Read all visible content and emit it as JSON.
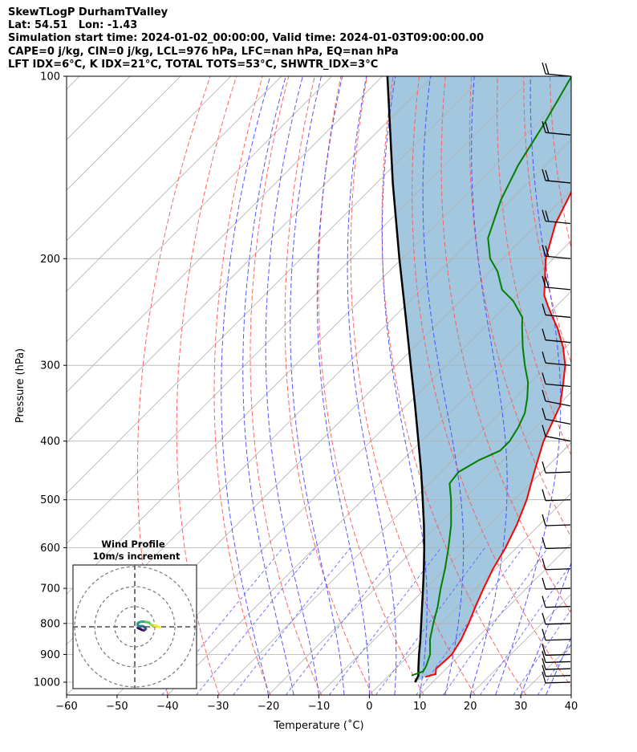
{
  "header": {
    "line1": "SkewTLogP DurhamTValley",
    "line2": "Lat: 54.51   Lon: -1.43",
    "line3": "Simulation start time: 2024-01-02_00:00:00, Valid time: 2024-01-03T09:00:00.00",
    "line4": "CAPE=0 j/kg, CIN=0 j/kg, LCL=976 hPa, LFC=nan hPa, EQ=nan hPa",
    "line5": "LFT IDX=6°C, K IDX=21°C, TOTAL TOTS=53°C, SHWTR_IDX=3°C"
  },
  "chart_data": {
    "type": "line",
    "subtype": "skew-t log-p diagram",
    "xlabel": "Temperature (˚C)",
    "ylabel": "Pressure (hPa)",
    "xlim": [
      -60,
      40
    ],
    "ylim": [
      1050,
      100
    ],
    "yscale": "log",
    "skew_degrees": 45,
    "x_ticks": [
      -60,
      -50,
      -40,
      -30,
      -20,
      -10,
      0,
      10,
      20,
      30,
      40
    ],
    "y_ticks": [
      100,
      200,
      300,
      400,
      500,
      600,
      700,
      800,
      900,
      1000
    ],
    "grid": true,
    "colors": {
      "temperature": "#ff0000",
      "dewpoint": "#008000",
      "parcel": "#000000",
      "cape_fill": "#a2c7df",
      "dry_adiabats": "#ff5555",
      "moist_adiabats": "#4444ff",
      "mixing_ratio": "#6666ff",
      "isotherm_grid": "#b0b0b0"
    },
    "series": [
      {
        "points": [
          [
            980,
            7.5
          ],
          [
            970,
            9.0
          ],
          [
            950,
            8.0
          ],
          [
            925,
            8.2
          ],
          [
            900,
            8.3
          ],
          [
            850,
            7.2
          ],
          [
            800,
            5.5
          ],
          [
            750,
            3.5
          ],
          [
            700,
            1.5
          ],
          [
            650,
            -0.5
          ],
          [
            600,
            -2.2
          ],
          [
            550,
            -4.5
          ],
          [
            500,
            -7.5
          ],
          [
            450,
            -11.5
          ],
          [
            400,
            -15.8
          ],
          [
            380,
            -17.2
          ],
          [
            350,
            -19.5
          ],
          [
            320,
            -23.5
          ],
          [
            300,
            -26.5
          ],
          [
            280,
            -30.5
          ],
          [
            260,
            -35.5
          ],
          [
            250,
            -38.5
          ],
          [
            240,
            -41.5
          ],
          [
            230,
            -44.5
          ],
          [
            200,
            -51.5
          ],
          [
            175,
            -56.5
          ],
          [
            150,
            -60.5
          ],
          [
            125,
            -63.0
          ],
          [
            100,
            -66.5
          ]
        ]
      },
      {
        "points": [
          [
            975,
            4.5
          ],
          [
            960,
            6.0
          ],
          [
            940,
            5.5
          ],
          [
            900,
            4.0
          ],
          [
            850,
            1.0
          ],
          [
            800,
            -1.5
          ],
          [
            750,
            -4.0
          ],
          [
            700,
            -7.0
          ],
          [
            650,
            -10.0
          ],
          [
            600,
            -13.5
          ],
          [
            550,
            -17.5
          ],
          [
            500,
            -22.5
          ],
          [
            470,
            -26.0
          ],
          [
            450,
            -26.5
          ],
          [
            430,
            -24.8
          ],
          [
            415,
            -22.5
          ],
          [
            400,
            -22.5
          ],
          [
            380,
            -23.5
          ],
          [
            360,
            -25.0
          ],
          [
            340,
            -27.5
          ],
          [
            320,
            -30.5
          ],
          [
            300,
            -34.5
          ],
          [
            280,
            -38.5
          ],
          [
            260,
            -42.5
          ],
          [
            250,
            -44.5
          ],
          [
            235,
            -49.5
          ],
          [
            225,
            -54.0
          ],
          [
            210,
            -58.5
          ],
          [
            200,
            -62.5
          ],
          [
            185,
            -67.0
          ],
          [
            160,
            -72.0
          ],
          [
            140,
            -75.5
          ],
          [
            120,
            -78.5
          ],
          [
            100,
            -82.5
          ]
        ]
      },
      {
        "points": [
          [
            1000,
            6.5
          ],
          [
            976,
            5.9
          ],
          [
            950,
            4.5
          ],
          [
            900,
            1.8
          ],
          [
            850,
            -0.9
          ],
          [
            800,
            -3.9
          ],
          [
            750,
            -7.1
          ],
          [
            700,
            -10.5
          ],
          [
            650,
            -14.2
          ],
          [
            600,
            -18.3
          ],
          [
            550,
            -22.9
          ],
          [
            500,
            -28.1
          ],
          [
            450,
            -33.9
          ],
          [
            400,
            -40.6
          ],
          [
            350,
            -48.2
          ],
          [
            300,
            -57.1
          ],
          [
            250,
            -67.6
          ],
          [
            200,
            -80.5
          ],
          [
            150,
            -96.8
          ],
          [
            100,
            -119.0
          ]
        ]
      }
    ],
    "wind_barbs_pressure_hPa": [
      100,
      125,
      150,
      175,
      200,
      225,
      250,
      275,
      300,
      325,
      350,
      375,
      400,
      450,
      500,
      550,
      600,
      650,
      700,
      750,
      800,
      850,
      900,
      925,
      950,
      975,
      1000
    ],
    "inset": {
      "title": "Wind Profile",
      "subtitle": "10m/s increment",
      "hodograph_uv": [
        [
          1.5,
          -0.5
        ],
        [
          2.5,
          -1.0
        ],
        [
          3.5,
          -1.5
        ],
        [
          4.5,
          -1.8
        ],
        [
          5.0,
          -1.5
        ],
        [
          5.5,
          -1.0
        ],
        [
          5.0,
          -0.2
        ],
        [
          4.0,
          0.3
        ],
        [
          3.0,
          0.3
        ],
        [
          2.0,
          0.3
        ],
        [
          1.5,
          0.8
        ],
        [
          1.5,
          1.8
        ],
        [
          2.5,
          2.4
        ],
        [
          4.0,
          2.6
        ],
        [
          5.5,
          2.4
        ],
        [
          7.0,
          2.2
        ],
        [
          8.0,
          1.2
        ],
        [
          9.0,
          0.5
        ],
        [
          10.0,
          0.5
        ],
        [
          11.0,
          0.3
        ],
        [
          12.5,
          -0.2
        ]
      ]
    }
  }
}
